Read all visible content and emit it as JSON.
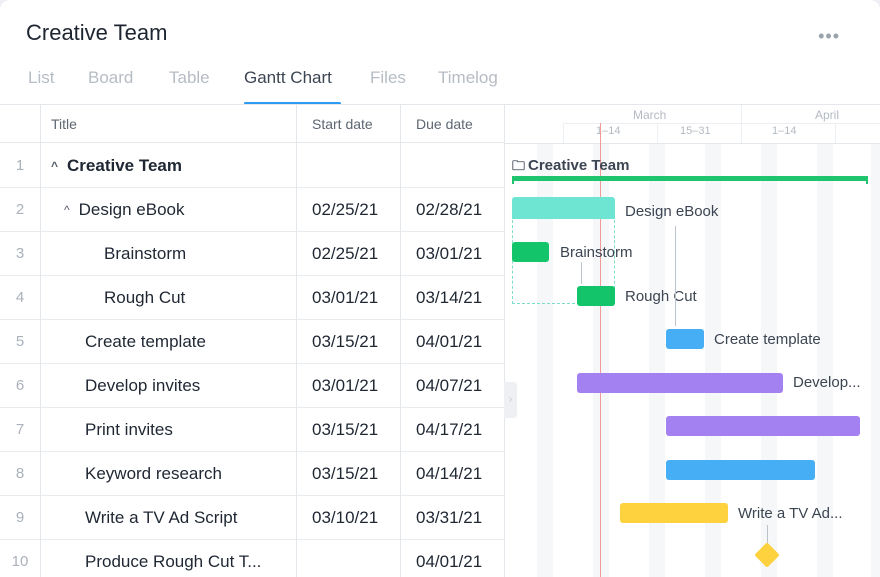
{
  "header": {
    "title": "Creative Team",
    "more_icon": "more-horizontal-icon",
    "more_glyph": "•••"
  },
  "tabs": [
    {
      "label": "List"
    },
    {
      "label": "Board"
    },
    {
      "label": "Table"
    },
    {
      "label": "Gantt Chart",
      "active": true
    },
    {
      "label": "Files"
    },
    {
      "label": "Timelog"
    }
  ],
  "table": {
    "columns": {
      "title": "Title",
      "start": "Start date",
      "due": "Due date"
    },
    "rows": [
      {
        "num": "1",
        "title": "Creative Team",
        "start": "",
        "due": "",
        "expand": "^"
      },
      {
        "num": "2",
        "title": "Design eBook",
        "start": "02/25/21",
        "due": "02/28/21",
        "expand": "^"
      },
      {
        "num": "3",
        "title": "Brainstorm",
        "start": "02/25/21",
        "due": "03/01/21"
      },
      {
        "num": "4",
        "title": "Rough Cut",
        "start": "03/01/21",
        "due": "03/14/21"
      },
      {
        "num": "5",
        "title": "Create template",
        "start": "03/15/21",
        "due": "04/01/21"
      },
      {
        "num": "6",
        "title": "Develop invites",
        "start": "03/01/21",
        "due": "04/07/21"
      },
      {
        "num": "7",
        "title": "Print invites",
        "start": "03/15/21",
        "due": "04/17/21"
      },
      {
        "num": "8",
        "title": "Keyword research",
        "start": "03/15/21",
        "due": "04/14/21"
      },
      {
        "num": "9",
        "title": "Write a TV Ad Script",
        "start": "03/10/21",
        "due": "03/31/21"
      },
      {
        "num": "10",
        "title": "Produce Rough Cut T...",
        "start": "",
        "due": "04/01/21"
      }
    ]
  },
  "gantt": {
    "months": [
      "March",
      "April"
    ],
    "periods": [
      "1–14",
      "15–31",
      "1–14"
    ],
    "folder_icon": "folder-icon",
    "folder_glyph": "🗀",
    "labels": {
      "project": "Creative Team",
      "design": "Design eBook",
      "brainstorm": "Brainstorm",
      "roughcut": "Rough Cut",
      "template": "Create template",
      "invites": "Develop...",
      "script": "Write a TV Ad..."
    },
    "colors": {
      "project": "#1fc46f",
      "design": "#6ee5d2",
      "task_green": "#14c46a",
      "blue": "#45aef5",
      "purple": "#a381f0",
      "yellow": "#fdd23e",
      "today": "#f19a9a",
      "accent": "#2f9cf3"
    }
  }
}
